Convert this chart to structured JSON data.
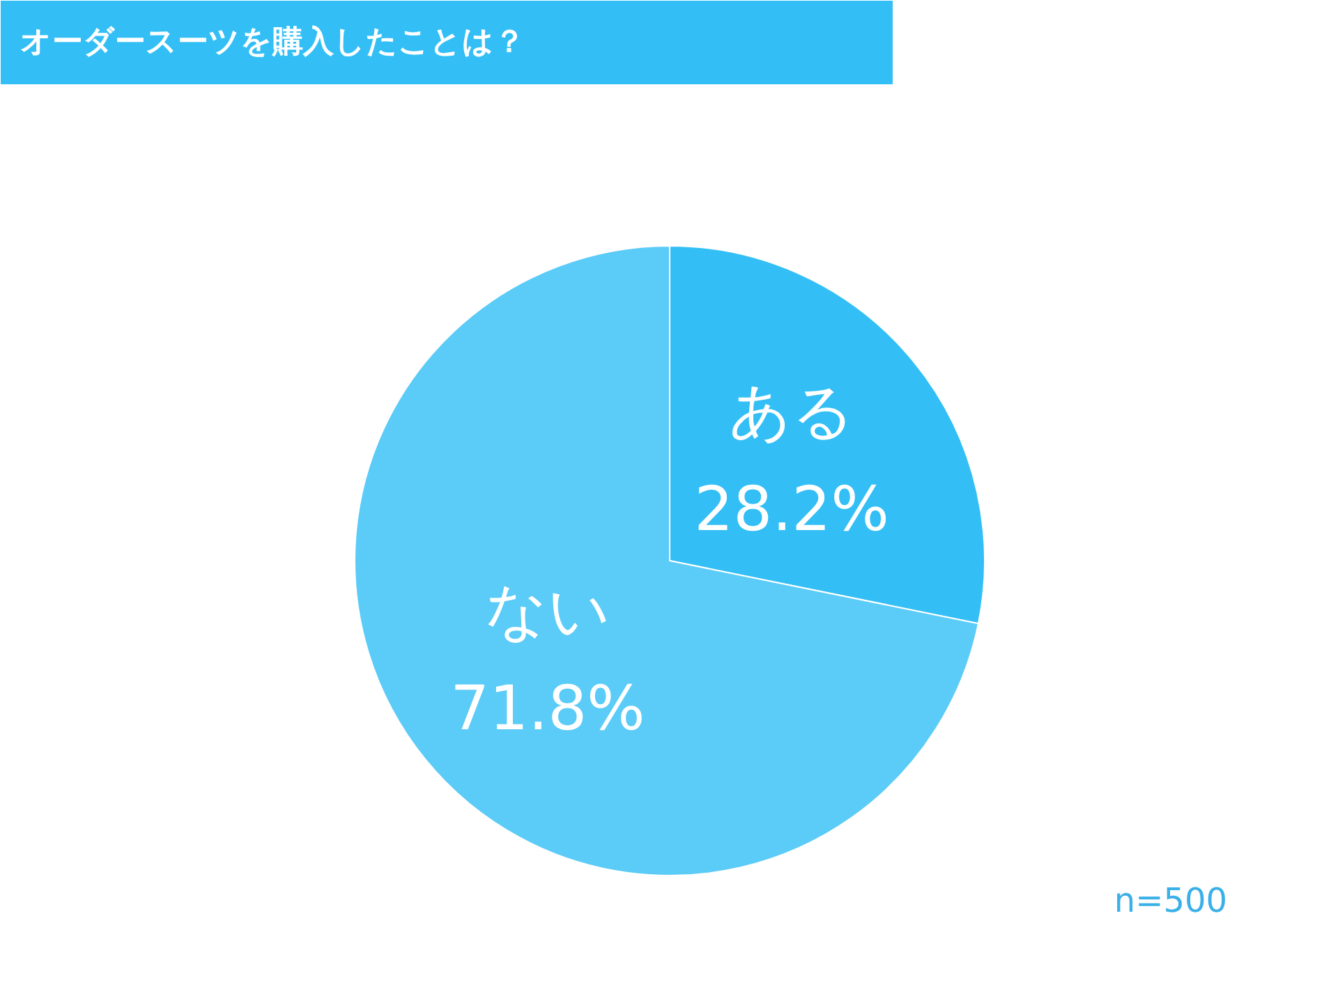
{
  "chart_data": {
    "type": "pie",
    "title": "オーダースーツを購入したことは？",
    "categories": [
      "ある",
      "ない"
    ],
    "values": [
      28.2,
      71.8
    ],
    "colors": [
      "#33bff5",
      "#5bcbf7"
    ],
    "value_labels": [
      "28.2%",
      "71.8%"
    ],
    "annotations": [
      "n=500"
    ]
  }
}
